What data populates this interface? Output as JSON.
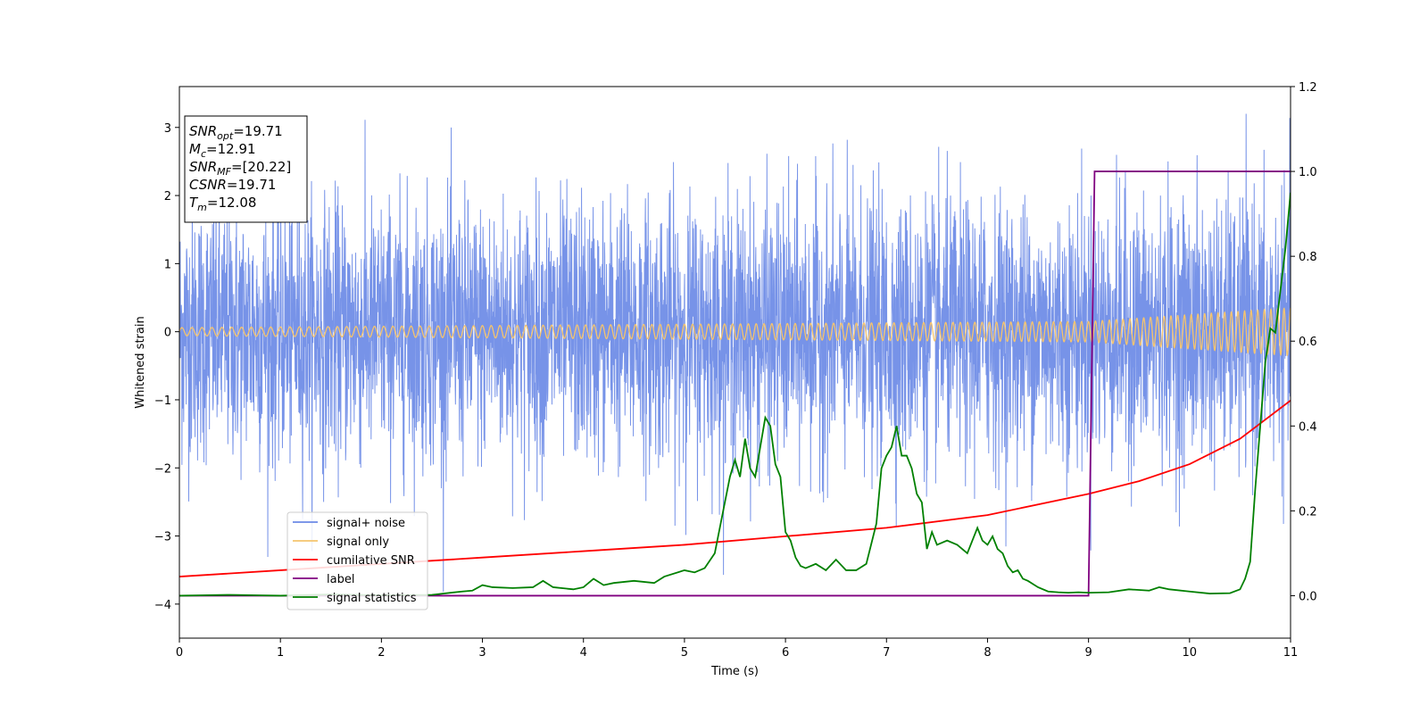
{
  "chart_data": {
    "type": "line",
    "xlabel": "Time (s)",
    "ylabel": "Whitened strain",
    "xlim": [
      0,
      11
    ],
    "ylim": [
      -4.5,
      3.6
    ],
    "y2lim": [
      -0.1,
      1.2
    ],
    "x_ticks": [
      0,
      1,
      2,
      3,
      4,
      5,
      6,
      7,
      8,
      9,
      10,
      11
    ],
    "y_ticks": [
      3,
      2,
      1,
      0,
      -1,
      -2,
      -3,
      -4
    ],
    "y2_ticks": [
      "1.2",
      "1.0",
      "0.8",
      "0.6",
      "0.4",
      "0.2",
      "0.0"
    ],
    "info_box": {
      "lines": [
        {
          "main": "SNR",
          "sub": "opt",
          "value": "=19.71"
        },
        {
          "main": "M",
          "sub": "c",
          "value": "=12.91"
        },
        {
          "main": "SNR",
          "sub": "MF",
          "value": "=[20.22]"
        },
        {
          "main": "CSNR",
          "sub": "",
          "value": "=19.71"
        },
        {
          "main": "T",
          "sub": "m",
          "value": "=12.08"
        }
      ]
    },
    "legend_position": "lower-left",
    "series": [
      {
        "name": "signal+ noise",
        "color": "#6b8ae6",
        "axis": "left",
        "description_range": [
          -4.2,
          3.2
        ]
      },
      {
        "name": "signal only",
        "color": "#f5c46e",
        "axis": "left",
        "amplitude_at": [
          [
            0,
            0.06
          ],
          [
            9,
            0.15
          ],
          [
            11,
            0.35
          ]
        ]
      },
      {
        "name": "cumilative SNR",
        "color": "#ff0000",
        "axis": "right",
        "x": [
          0,
          1,
          2,
          3,
          4,
          5,
          6,
          7,
          8,
          9,
          9.5,
          10,
          10.5,
          11
        ],
        "y": [
          0.045,
          0.06,
          0.075,
          0.09,
          0.105,
          0.12,
          0.14,
          0.16,
          0.19,
          0.24,
          0.27,
          0.31,
          0.37,
          0.46
        ]
      },
      {
        "name": "label",
        "color": "#800080",
        "axis": "right",
        "x": [
          0,
          8.99,
          9.0,
          9.06,
          11
        ],
        "y": [
          0.0,
          0.0,
          0.0,
          1.0,
          1.0
        ]
      },
      {
        "name": "signal statistics",
        "color": "#008000",
        "axis": "right",
        "x": [
          0,
          0.5,
          1,
          1.5,
          2,
          2.5,
          2.8,
          2.9,
          3.0,
          3.1,
          3.3,
          3.5,
          3.6,
          3.7,
          3.9,
          4.0,
          4.1,
          4.2,
          4.3,
          4.5,
          4.7,
          4.8,
          5.0,
          5.1,
          5.2,
          5.3,
          5.4,
          5.45,
          5.5,
          5.55,
          5.6,
          5.65,
          5.7,
          5.75,
          5.8,
          5.85,
          5.9,
          5.95,
          6.0,
          6.05,
          6.1,
          6.15,
          6.2,
          6.3,
          6.4,
          6.5,
          6.6,
          6.7,
          6.8,
          6.9,
          6.95,
          7.0,
          7.05,
          7.1,
          7.15,
          7.2,
          7.25,
          7.3,
          7.35,
          7.4,
          7.45,
          7.5,
          7.6,
          7.7,
          7.8,
          7.9,
          7.95,
          8.0,
          8.05,
          8.1,
          8.15,
          8.2,
          8.25,
          8.3,
          8.35,
          8.4,
          8.5,
          8.6,
          8.7,
          8.8,
          8.9,
          9.0,
          9.2,
          9.4,
          9.6,
          9.7,
          9.8,
          10.0,
          10.2,
          10.4,
          10.5,
          10.55,
          10.6,
          10.65,
          10.7,
          10.75,
          10.8,
          10.85,
          10.9,
          10.95,
          11.0
        ],
        "y": [
          0.0,
          0.002,
          0.0,
          0.003,
          0.001,
          0.002,
          0.01,
          0.012,
          0.025,
          0.02,
          0.018,
          0.02,
          0.035,
          0.02,
          0.015,
          0.02,
          0.04,
          0.025,
          0.03,
          0.035,
          0.03,
          0.045,
          0.06,
          0.055,
          0.065,
          0.1,
          0.22,
          0.28,
          0.32,
          0.28,
          0.37,
          0.3,
          0.28,
          0.35,
          0.42,
          0.4,
          0.31,
          0.28,
          0.15,
          0.13,
          0.09,
          0.07,
          0.065,
          0.075,
          0.06,
          0.085,
          0.06,
          0.06,
          0.075,
          0.17,
          0.3,
          0.33,
          0.35,
          0.4,
          0.33,
          0.33,
          0.3,
          0.24,
          0.22,
          0.11,
          0.15,
          0.12,
          0.13,
          0.12,
          0.1,
          0.16,
          0.13,
          0.12,
          0.14,
          0.11,
          0.1,
          0.07,
          0.055,
          0.06,
          0.04,
          0.035,
          0.02,
          0.01,
          0.008,
          0.007,
          0.008,
          0.007,
          0.008,
          0.015,
          0.012,
          0.02,
          0.015,
          0.01,
          0.005,
          0.006,
          0.015,
          0.04,
          0.08,
          0.25,
          0.4,
          0.55,
          0.63,
          0.62,
          0.72,
          0.82,
          0.95
        ]
      }
    ]
  }
}
